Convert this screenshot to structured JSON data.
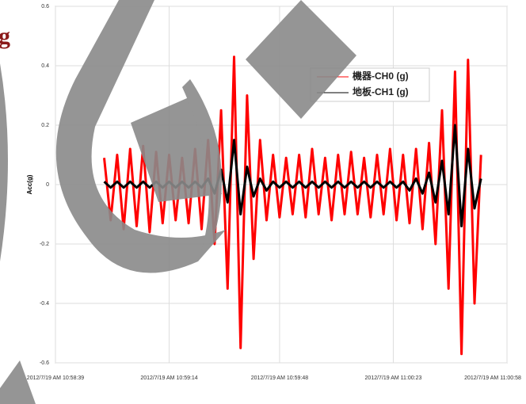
{
  "watermark": "g",
  "chart_data": {
    "type": "line",
    "ylabel": "Acc(g)",
    "x": [
      "2012/7/19 AM 10:58:54",
      "2012/7/19 AM 10:58:56",
      "2012/7/19 AM 10:58:58",
      "2012/7/19 AM 10:59:00",
      "2012/7/19 AM 10:59:02",
      "2012/7/19 AM 10:59:04",
      "2012/7/19 AM 10:59:06",
      "2012/7/19 AM 10:59:08",
      "2012/7/19 AM 10:59:10",
      "2012/7/19 AM 10:59:12",
      "2012/7/19 AM 10:59:14",
      "2012/7/19 AM 10:59:16",
      "2012/7/19 AM 10:59:18",
      "2012/7/19 AM 10:59:20",
      "2012/7/19 AM 10:59:22",
      "2012/7/19 AM 10:59:24",
      "2012/7/19 AM 10:59:26",
      "2012/7/19 AM 10:59:28",
      "2012/7/19 AM 10:59:30",
      "2012/7/19 AM 10:59:32",
      "2012/7/19 AM 10:59:34",
      "2012/7/19 AM 10:59:36",
      "2012/7/19 AM 10:59:38",
      "2012/7/19 AM 10:59:40",
      "2012/7/19 AM 10:59:42",
      "2012/7/19 AM 10:59:44",
      "2012/7/19 AM 10:59:46",
      "2012/7/19 AM 10:59:48",
      "2012/7/19 AM 10:59:50",
      "2012/7/19 AM 10:59:52",
      "2012/7/19 AM 10:59:54",
      "2012/7/19 AM 10:59:56",
      "2012/7/19 AM 10:59:58",
      "2012/7/19 AM 11:00:00",
      "2012/7/19 AM 11:00:02",
      "2012/7/19 AM 11:00:04",
      "2012/7/19 AM 11:00:06",
      "2012/7/19 AM 11:00:08",
      "2012/7/19 AM 11:00:10",
      "2012/7/19 AM 11:00:12",
      "2012/7/19 AM 11:00:14",
      "2012/7/19 AM 11:00:16",
      "2012/7/19 AM 11:00:18",
      "2012/7/19 AM 11:00:20",
      "2012/7/19 AM 11:00:22",
      "2012/7/19 AM 11:00:24",
      "2012/7/19 AM 11:00:26",
      "2012/7/19 AM 11:00:28",
      "2012/7/19 AM 11:00:30",
      "2012/7/19 AM 11:00:32",
      "2012/7/19 AM 11:00:34",
      "2012/7/19 AM 11:00:36",
      "2012/7/19 AM 11:00:38",
      "2012/7/19 AM 11:00:40",
      "2012/7/19 AM 11:00:42",
      "2012/7/19 AM 11:00:44",
      "2012/7/19 AM 11:00:46",
      "2012/7/19 AM 11:00:48",
      "2012/7/19 AM 11:00:50"
    ],
    "series": [
      {
        "name": "機器-CH0 (g)",
        "color": "#ff0000",
        "values": [
          0.09,
          -0.12,
          0.1,
          -0.15,
          0.12,
          -0.14,
          0.13,
          -0.16,
          0.11,
          -0.13,
          0.1,
          -0.12,
          0.09,
          -0.13,
          0.12,
          -0.15,
          0.15,
          -0.2,
          0.25,
          -0.35,
          0.43,
          -0.55,
          0.3,
          -0.25,
          0.15,
          -0.12,
          0.1,
          -0.11,
          0.09,
          -0.1,
          0.1,
          -0.11,
          0.12,
          -0.1,
          0.09,
          -0.12,
          0.1,
          -0.1,
          0.11,
          -0.1,
          0.09,
          -0.11,
          0.1,
          -0.1,
          0.12,
          -0.12,
          0.1,
          -0.13,
          0.12,
          -0.15,
          0.14,
          -0.2,
          0.25,
          -0.35,
          0.38,
          -0.57,
          0.42,
          -0.4,
          0.1
        ]
      },
      {
        "name": "地板-CH1 (g)",
        "color": "#000000",
        "values": [
          0.01,
          -0.01,
          0.01,
          -0.01,
          0.01,
          -0.01,
          0.01,
          -0.01,
          0.01,
          -0.01,
          0.01,
          -0.01,
          0.01,
          -0.01,
          0.01,
          -0.01,
          0.02,
          -0.03,
          0.05,
          -0.06,
          0.15,
          -0.1,
          0.06,
          -0.04,
          0.02,
          -0.02,
          0.01,
          -0.01,
          0.01,
          -0.01,
          0.01,
          -0.01,
          0.01,
          -0.01,
          0.01,
          -0.01,
          0.01,
          -0.01,
          0.01,
          -0.01,
          0.01,
          -0.01,
          0.01,
          -0.01,
          0.01,
          -0.01,
          0.01,
          -0.02,
          0.02,
          -0.03,
          0.04,
          -0.06,
          0.08,
          -0.1,
          0.2,
          -0.14,
          0.12,
          -0.08,
          0.02
        ]
      }
    ],
    "xlim": [
      "2012/7/19 AM 10:58:39",
      "2012/7/19 AM 11:00:58"
    ],
    "xticks": [
      "2012/7/19 AM 10:58:39",
      "2012/7/19 AM 10:59:14",
      "2012/7/19 AM 10:59:48",
      "2012/7/19 AM 11:00:23",
      "2012/7/19 AM 11:00:58"
    ],
    "ylim": [
      -0.6,
      0.6
    ],
    "yticks": [
      -0.6,
      -0.4,
      -0.2,
      0,
      0.2,
      0.4,
      0.6
    ],
    "grid": true
  }
}
